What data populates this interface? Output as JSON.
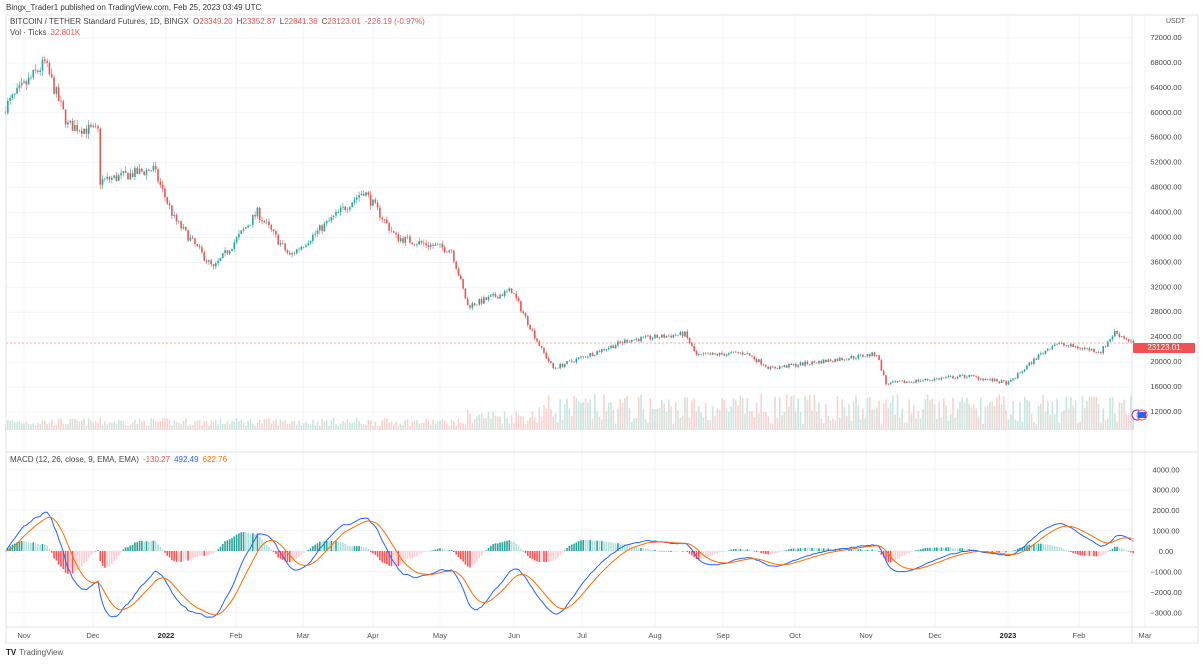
{
  "publisher": "Bingx_Trader1 published on TradingView.com, Feb 25, 2023 03:49 UTC",
  "symbol": {
    "title": "BITCOIN / TETHER Standard Futures, 1D, BINGX",
    "open_label": "O",
    "open": "23349.20",
    "high_label": "H",
    "high": "23352.87",
    "low_label": "L",
    "low": "22841.36",
    "close_label": "C",
    "close": "23123.01",
    "change": "-226.19 (-0.97%)"
  },
  "volume": {
    "label": "Vol · Ticks",
    "value": "32.801K"
  },
  "macd": {
    "label": "MACD (12, 26, close, 9, EMA, EMA)",
    "hist": "-130.27",
    "macd": "492.49",
    "signal": "622.76"
  },
  "last_price_label": "23123.01",
  "currency": "USDT",
  "brand": "TradingView",
  "colors": {
    "up": "#26a69a",
    "down": "#ef5350",
    "macd": "#2962ff",
    "signal": "#ff6d00"
  },
  "chart_data": {
    "type": "candlestick",
    "interval": "1D",
    "start_date": "2021-10-24",
    "end_date": "2023-02-24",
    "price_axis": {
      "ticks": [
        "72000.00",
        "68000.00",
        "64000.00",
        "60000.00",
        "56000.00",
        "52000.00",
        "48000.00",
        "44000.00",
        "40000.00",
        "36000.00",
        "32000.00",
        "28000.00",
        "24000.00",
        "20000.00",
        "16000.00",
        "12000.00"
      ],
      "range": [
        12000,
        72000
      ]
    },
    "macd_axis": {
      "ticks": [
        "4000.00",
        "3000.00",
        "2000.00",
        "1000.00",
        "0.00",
        "−1000.00",
        "−2000.00",
        "−3000.00"
      ],
      "range": [
        -3000,
        4000
      ]
    },
    "time_axis": {
      "ticks": [
        "Nov",
        "Dec",
        "2022",
        "Feb",
        "Mar",
        "Apr",
        "May",
        "Jun",
        "Jul",
        "Aug",
        "Sep",
        "Oct",
        "Nov",
        "Dec",
        "2023",
        "Feb",
        "Mar"
      ]
    },
    "close_path": [
      [
        "2021-10-24",
        61000
      ],
      [
        "2021-11-10",
        68000
      ],
      [
        "2021-11-20",
        58000
      ],
      [
        "2021-12-03",
        57000
      ],
      [
        "2021-12-04",
        49000
      ],
      [
        "2021-12-27",
        51000
      ],
      [
        "2022-01-05",
        43000
      ],
      [
        "2022-01-22",
        35000
      ],
      [
        "2022-02-10",
        44000
      ],
      [
        "2022-02-24",
        37000
      ],
      [
        "2022-03-28",
        47500
      ],
      [
        "2022-04-11",
        40000
      ],
      [
        "2022-05-05",
        38000
      ],
      [
        "2022-05-12",
        29000
      ],
      [
        "2022-05-31",
        31500
      ],
      [
        "2022-06-13",
        22000
      ],
      [
        "2022-06-18",
        19000
      ],
      [
        "2022-07-20",
        23500
      ],
      [
        "2022-08-14",
        24500
      ],
      [
        "2022-08-19",
        21000
      ],
      [
        "2022-09-09",
        21500
      ],
      [
        "2022-09-20",
        19000
      ],
      [
        "2022-11-05",
        21300
      ],
      [
        "2022-11-09",
        16500
      ],
      [
        "2022-12-14",
        17800
      ],
      [
        "2023-01-01",
        16600
      ],
      [
        "2023-01-14",
        21000
      ],
      [
        "2023-01-21",
        23000
      ],
      [
        "2023-02-10",
        21700
      ],
      [
        "2023-02-16",
        24800
      ],
      [
        "2023-02-24",
        23123
      ]
    ]
  }
}
